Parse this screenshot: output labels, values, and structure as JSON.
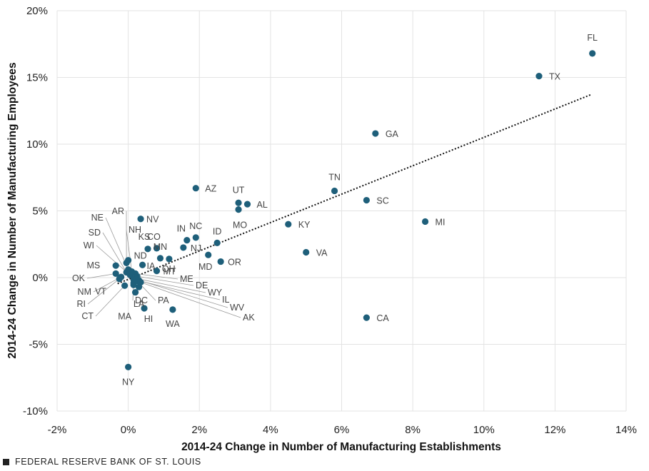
{
  "chart_data": {
    "type": "scatter",
    "title": "",
    "xlabel": "2014-24 Change in Number of Manufacturing Establishments",
    "ylabel": "2014-24 Change in Number of Manufacturing Employees",
    "xlim": [
      -2,
      14
    ],
    "ylim": [
      -10,
      20
    ],
    "x_ticks": [
      -2,
      0,
      2,
      4,
      6,
      8,
      10,
      12,
      14
    ],
    "y_ticks": [
      -10,
      -5,
      0,
      5,
      10,
      15,
      20
    ],
    "x_tick_labels": [
      "-2%",
      "0%",
      "2%",
      "4%",
      "6%",
      "8%",
      "10%",
      "12%",
      "14%"
    ],
    "y_tick_labels": [
      "-10%",
      "-5%",
      "0%",
      "5%",
      "10%",
      "15%",
      "20%"
    ],
    "grid": "horizontal and vertical, light gray",
    "marker_color": "#1e5f7a",
    "points": [
      {
        "label": "FL",
        "x": 13.05,
        "y": 16.8
      },
      {
        "label": "TX",
        "x": 11.55,
        "y": 15.1
      },
      {
        "label": "GA",
        "x": 6.95,
        "y": 10.8
      },
      {
        "label": "TN",
        "x": 5.8,
        "y": 6.5
      },
      {
        "label": "SC",
        "x": 6.7,
        "y": 5.8
      },
      {
        "label": "MI",
        "x": 8.35,
        "y": 4.2
      },
      {
        "label": "AZ",
        "x": 1.9,
        "y": 6.7
      },
      {
        "label": "UT",
        "x": 3.1,
        "y": 5.6
      },
      {
        "label": "AL",
        "x": 3.35,
        "y": 5.5
      },
      {
        "label": "MO",
        "x": 3.1,
        "y": 5.1
      },
      {
        "label": "KY",
        "x": 4.5,
        "y": 4.0
      },
      {
        "label": "VA",
        "x": 5.0,
        "y": 1.9
      },
      {
        "label": "CA",
        "x": 6.7,
        "y": -3.0
      },
      {
        "label": "NV",
        "x": 0.35,
        "y": 4.4
      },
      {
        "label": "NC",
        "x": 1.9,
        "y": 3.0
      },
      {
        "label": "IN",
        "x": 1.65,
        "y": 2.8
      },
      {
        "label": "ID",
        "x": 2.5,
        "y": 2.6
      },
      {
        "label": "NJ",
        "x": 1.55,
        "y": 2.25
      },
      {
        "label": "CO",
        "x": 0.8,
        "y": 2.2
      },
      {
        "label": "KS",
        "x": 0.55,
        "y": 2.15
      },
      {
        "label": "MD",
        "x": 2.25,
        "y": 1.7
      },
      {
        "label": "OR",
        "x": 2.6,
        "y": 1.2
      },
      {
        "label": "MN",
        "x": 0.9,
        "y": 1.45
      },
      {
        "label": "OH",
        "x": 1.15,
        "y": 1.4
      },
      {
        "label": "ND",
        "x": 0.0,
        "y": 1.3
      },
      {
        "label": "IA",
        "x": 0.4,
        "y": 0.95
      },
      {
        "label": "MT",
        "x": 0.8,
        "y": 0.5
      },
      {
        "label": "NY",
        "x": 0.0,
        "y": -6.7
      },
      {
        "label": "WA",
        "x": 1.25,
        "y": -2.4
      },
      {
        "label": "HI",
        "x": 0.45,
        "y": -2.3
      },
      {
        "label": "MS",
        "x": -0.35,
        "y": 0.9
      },
      {
        "label": "OK",
        "x": -0.35,
        "y": 0.3
      },
      {
        "label": "NM",
        "x": -0.2,
        "y": 0.05
      },
      {
        "label": "RI",
        "x": -0.25,
        "y": -0.1
      },
      {
        "label": "CT",
        "x": -0.1,
        "y": -0.6
      },
      {
        "label": "LA",
        "x": 0.3,
        "y": -0.7
      },
      {
        "label": "VT",
        "x": 0.15,
        "y": -0.55
      },
      {
        "label": "MA",
        "x": 0.2,
        "y": -1.1
      },
      {
        "label": "DC",
        "x": 0.15,
        "y": -0.4
      },
      {
        "label": "PA",
        "x": 0.25,
        "y": -0.25
      },
      {
        "label": "AR",
        "x": -0.05,
        "y": 1.1
      },
      {
        "label": "NE",
        "x": 0.0,
        "y": 0.6
      },
      {
        "label": "SD",
        "x": -0.05,
        "y": 0.4
      },
      {
        "label": "WI",
        "x": 0.05,
        "y": 0.2
      },
      {
        "label": "NH",
        "x": 0.1,
        "y": 0.45
      },
      {
        "label": "ME",
        "x": 0.2,
        "y": 0.3
      },
      {
        "label": "DE",
        "x": 0.25,
        "y": 0.1
      },
      {
        "label": "WY",
        "x": 0.2,
        "y": -0.05
      },
      {
        "label": "IL",
        "x": 0.15,
        "y": -0.15
      },
      {
        "label": "WV",
        "x": 0.3,
        "y": -0.2
      },
      {
        "label": "AK",
        "x": 0.35,
        "y": -0.35
      }
    ],
    "trendline": {
      "style": "dotted",
      "x": [
        -0.3,
        13.0
      ],
      "y": [
        -0.45,
        13.7
      ]
    }
  },
  "footer": {
    "source": "FEDERAL RESERVE BANK OF ST. LOUIS"
  }
}
